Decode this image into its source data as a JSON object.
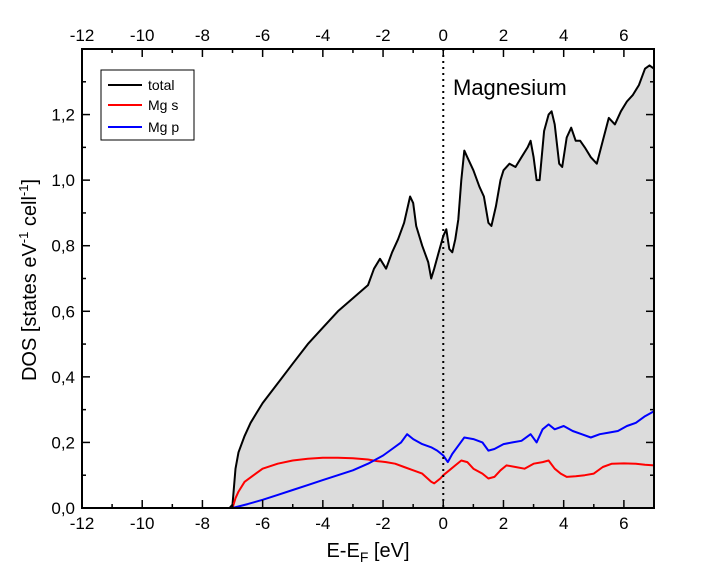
{
  "chart_data": {
    "type": "line",
    "title": "",
    "annotation": "Magnesium",
    "xlabel": "E-E",
    "xlabel_sub": "F",
    "xlabel_unit": " [eV]",
    "ylabel": "DOS [states eV",
    "ylabel_sup1": "-1",
    "ylabel_mid": " cell",
    "ylabel_sup2": "-1",
    "ylabel_end": "]",
    "xlim": [
      -12,
      7
    ],
    "ylim": [
      0,
      1.4
    ],
    "xticks": [
      -12,
      -10,
      -8,
      -6,
      -4,
      -2,
      0,
      2,
      4,
      6
    ],
    "xtick_labels": [
      "-12",
      "-10",
      "-8",
      "-6",
      "-4",
      "-2",
      "0",
      "2",
      "4",
      "6"
    ],
    "yticks": [
      0,
      0.2,
      0.4,
      0.6,
      0.8,
      1.0,
      1.2
    ],
    "ytick_labels": [
      "0,0",
      "0,2",
      "0,4",
      "0,6",
      "0,8",
      "1,0",
      "1,2"
    ],
    "fermi_level": 0,
    "fill_color": "#dcdcdc",
    "legend_position": "top-left",
    "series": [
      {
        "name": "total",
        "color": "#000000",
        "filled": true,
        "points": [
          [
            -12,
            0
          ],
          [
            -7.1,
            0
          ],
          [
            -7.0,
            0.01
          ],
          [
            -6.9,
            0.12
          ],
          [
            -6.8,
            0.17
          ],
          [
            -6.6,
            0.22
          ],
          [
            -6.4,
            0.26
          ],
          [
            -6.2,
            0.29
          ],
          [
            -6.0,
            0.32
          ],
          [
            -5.5,
            0.38
          ],
          [
            -5.0,
            0.44
          ],
          [
            -4.5,
            0.5
          ],
          [
            -4.0,
            0.55
          ],
          [
            -3.5,
            0.6
          ],
          [
            -3.0,
            0.64
          ],
          [
            -2.5,
            0.68
          ],
          [
            -2.3,
            0.73
          ],
          [
            -2.1,
            0.76
          ],
          [
            -1.9,
            0.73
          ],
          [
            -1.7,
            0.78
          ],
          [
            -1.5,
            0.82
          ],
          [
            -1.3,
            0.87
          ],
          [
            -1.1,
            0.95
          ],
          [
            -1.0,
            0.93
          ],
          [
            -0.9,
            0.86
          ],
          [
            -0.7,
            0.8
          ],
          [
            -0.5,
            0.75
          ],
          [
            -0.4,
            0.7
          ],
          [
            -0.3,
            0.73
          ],
          [
            -0.15,
            0.78
          ],
          [
            0.0,
            0.83
          ],
          [
            0.1,
            0.85
          ],
          [
            0.2,
            0.79
          ],
          [
            0.3,
            0.78
          ],
          [
            0.4,
            0.82
          ],
          [
            0.5,
            0.88
          ],
          [
            0.6,
            1.0
          ],
          [
            0.7,
            1.09
          ],
          [
            0.8,
            1.07
          ],
          [
            1.0,
            1.03
          ],
          [
            1.2,
            0.98
          ],
          [
            1.35,
            0.95
          ],
          [
            1.5,
            0.87
          ],
          [
            1.6,
            0.86
          ],
          [
            1.75,
            0.92
          ],
          [
            1.9,
            1.0
          ],
          [
            2.0,
            1.03
          ],
          [
            2.2,
            1.05
          ],
          [
            2.4,
            1.04
          ],
          [
            2.6,
            1.07
          ],
          [
            2.8,
            1.1
          ],
          [
            2.9,
            1.12
          ],
          [
            3.0,
            1.07
          ],
          [
            3.1,
            1.0
          ],
          [
            3.2,
            1.0
          ],
          [
            3.35,
            1.15
          ],
          [
            3.5,
            1.2
          ],
          [
            3.6,
            1.21
          ],
          [
            3.7,
            1.17
          ],
          [
            3.85,
            1.05
          ],
          [
            3.95,
            1.04
          ],
          [
            4.1,
            1.13
          ],
          [
            4.25,
            1.16
          ],
          [
            4.4,
            1.12
          ],
          [
            4.55,
            1.12
          ],
          [
            4.7,
            1.1
          ],
          [
            4.9,
            1.07
          ],
          [
            5.1,
            1.05
          ],
          [
            5.3,
            1.12
          ],
          [
            5.5,
            1.19
          ],
          [
            5.7,
            1.17
          ],
          [
            5.9,
            1.21
          ],
          [
            6.1,
            1.24
          ],
          [
            6.3,
            1.26
          ],
          [
            6.5,
            1.29
          ],
          [
            6.7,
            1.34
          ],
          [
            6.85,
            1.35
          ],
          [
            7.0,
            1.34
          ]
        ]
      },
      {
        "name": "Mg s",
        "color": "#ff0000",
        "filled": false,
        "points": [
          [
            -7.0,
            0.0
          ],
          [
            -6.9,
            0.03
          ],
          [
            -6.8,
            0.05
          ],
          [
            -6.6,
            0.08
          ],
          [
            -6.3,
            0.1
          ],
          [
            -6.0,
            0.12
          ],
          [
            -5.5,
            0.135
          ],
          [
            -5.0,
            0.145
          ],
          [
            -4.5,
            0.15
          ],
          [
            -4.0,
            0.153
          ],
          [
            -3.5,
            0.153
          ],
          [
            -3.0,
            0.152
          ],
          [
            -2.5,
            0.148
          ],
          [
            -2.2,
            0.143
          ],
          [
            -1.9,
            0.14
          ],
          [
            -1.6,
            0.135
          ],
          [
            -1.3,
            0.125
          ],
          [
            -1.0,
            0.115
          ],
          [
            -0.7,
            0.105
          ],
          [
            -0.4,
            0.08
          ],
          [
            -0.3,
            0.075
          ],
          [
            -0.1,
            0.09
          ],
          [
            0.0,
            0.1
          ],
          [
            0.2,
            0.115
          ],
          [
            0.4,
            0.13
          ],
          [
            0.6,
            0.145
          ],
          [
            0.8,
            0.14
          ],
          [
            1.0,
            0.12
          ],
          [
            1.3,
            0.105
          ],
          [
            1.5,
            0.09
          ],
          [
            1.7,
            0.095
          ],
          [
            1.9,
            0.115
          ],
          [
            2.1,
            0.13
          ],
          [
            2.4,
            0.125
          ],
          [
            2.7,
            0.12
          ],
          [
            3.0,
            0.135
          ],
          [
            3.3,
            0.14
          ],
          [
            3.5,
            0.145
          ],
          [
            3.7,
            0.12
          ],
          [
            3.9,
            0.105
          ],
          [
            4.1,
            0.095
          ],
          [
            4.4,
            0.097
          ],
          [
            4.7,
            0.1
          ],
          [
            5.0,
            0.105
          ],
          [
            5.3,
            0.125
          ],
          [
            5.6,
            0.135
          ],
          [
            6.0,
            0.136
          ],
          [
            6.4,
            0.135
          ],
          [
            6.7,
            0.132
          ],
          [
            7.0,
            0.13
          ]
        ]
      },
      {
        "name": "Mg p",
        "color": "#0000ff",
        "filled": false,
        "points": [
          [
            -7.0,
            0.0
          ],
          [
            -6.5,
            0.012
          ],
          [
            -6.0,
            0.025
          ],
          [
            -5.5,
            0.04
          ],
          [
            -5.0,
            0.055
          ],
          [
            -4.5,
            0.07
          ],
          [
            -4.0,
            0.085
          ],
          [
            -3.5,
            0.1
          ],
          [
            -3.0,
            0.115
          ],
          [
            -2.5,
            0.135
          ],
          [
            -2.0,
            0.16
          ],
          [
            -1.7,
            0.18
          ],
          [
            -1.4,
            0.2
          ],
          [
            -1.2,
            0.225
          ],
          [
            -1.0,
            0.21
          ],
          [
            -0.7,
            0.195
          ],
          [
            -0.4,
            0.185
          ],
          [
            -0.2,
            0.175
          ],
          [
            0.0,
            0.16
          ],
          [
            0.15,
            0.14
          ],
          [
            0.3,
            0.165
          ],
          [
            0.5,
            0.19
          ],
          [
            0.7,
            0.215
          ],
          [
            1.0,
            0.21
          ],
          [
            1.3,
            0.2
          ],
          [
            1.5,
            0.175
          ],
          [
            1.7,
            0.18
          ],
          [
            2.0,
            0.195
          ],
          [
            2.3,
            0.2
          ],
          [
            2.6,
            0.205
          ],
          [
            2.9,
            0.225
          ],
          [
            3.1,
            0.2
          ],
          [
            3.3,
            0.24
          ],
          [
            3.5,
            0.255
          ],
          [
            3.7,
            0.24
          ],
          [
            4.0,
            0.25
          ],
          [
            4.3,
            0.235
          ],
          [
            4.6,
            0.225
          ],
          [
            4.9,
            0.215
          ],
          [
            5.2,
            0.225
          ],
          [
            5.5,
            0.23
          ],
          [
            5.8,
            0.235
          ],
          [
            6.1,
            0.25
          ],
          [
            6.4,
            0.26
          ],
          [
            6.7,
            0.28
          ],
          [
            7.0,
            0.295
          ]
        ]
      }
    ]
  }
}
